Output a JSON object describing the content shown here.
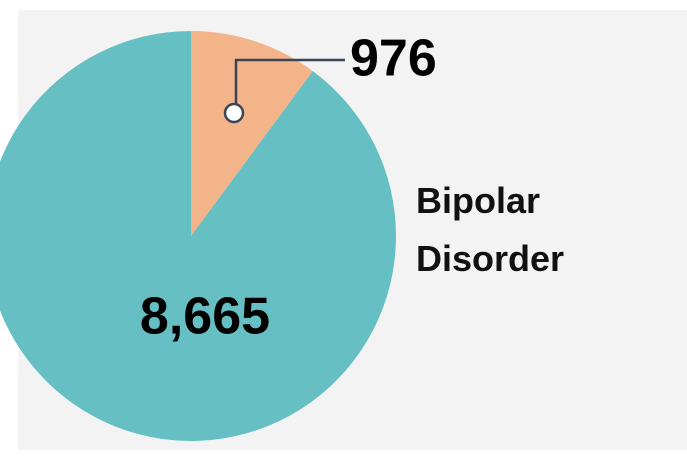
{
  "chart_data": {
    "type": "pie",
    "title": "Bipolar Disorder",
    "values": [
      976,
      8665
    ],
    "value_labels": [
      "976",
      "8,665"
    ],
    "colors": [
      "#f4b48a",
      "#66c0c3"
    ]
  }
}
